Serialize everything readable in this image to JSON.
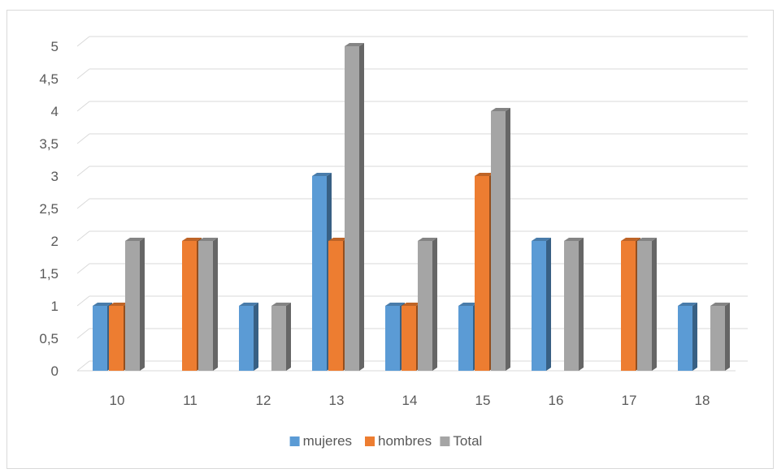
{
  "chart_data": {
    "type": "bar",
    "title": "",
    "xlabel": "",
    "ylabel": "",
    "categories": [
      "10",
      "11",
      "12",
      "13",
      "14",
      "15",
      "16",
      "17",
      "18"
    ],
    "series": [
      {
        "name": "mujeres",
        "color": "#5b9bd5",
        "values": [
          1,
          0,
          1,
          3,
          1,
          1,
          2,
          0,
          1
        ]
      },
      {
        "name": "hombres",
        "color": "#ed7d31",
        "values": [
          1,
          2,
          0,
          2,
          1,
          3,
          0,
          2,
          0
        ]
      },
      {
        "name": "Total",
        "color": "#a5a5a5",
        "values": [
          2,
          2,
          1,
          5,
          2,
          4,
          2,
          2,
          1
        ]
      }
    ],
    "ylim": [
      0,
      5
    ],
    "yticks": [
      "0",
      "0,5",
      "1",
      "1,5",
      "2",
      "2,5",
      "3",
      "3,5",
      "4",
      "4,5",
      "5"
    ],
    "grid": true,
    "legend_position": "bottom",
    "style": "3d-clustered-column"
  }
}
